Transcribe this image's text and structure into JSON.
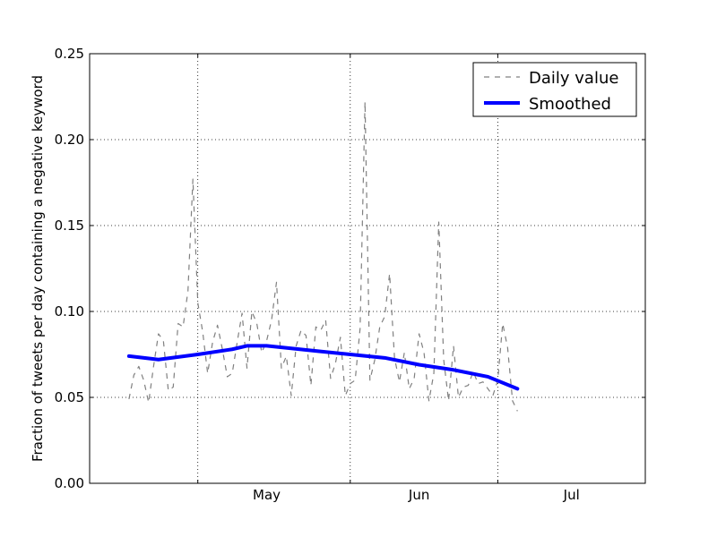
{
  "chart_data": {
    "type": "line",
    "ylabel": "Fraction of tweets per day containing a negative keyword",
    "xlabel": "",
    "title": "",
    "x_domain": [
      "2011-04-09",
      "2011-07-31"
    ],
    "ylim": [
      0,
      0.25
    ],
    "y_ticks": [
      0.0,
      0.05,
      0.1,
      0.15,
      0.2,
      0.25
    ],
    "y_tick_labels": [
      "0.00",
      "0.05",
      "0.10",
      "0.15",
      "0.20",
      "0.25"
    ],
    "x_grid_dates": [
      "2011-05-01",
      "2011-06-01",
      "2011-07-01"
    ],
    "x_tick_labels": [
      {
        "label": "May",
        "date": "2011-05-15"
      },
      {
        "label": "Jun",
        "date": "2011-06-15"
      },
      {
        "label": "Jul",
        "date": "2011-07-16"
      }
    ],
    "grid": true,
    "legend_position": "top-right",
    "series": [
      {
        "name": "Daily value",
        "style": "dashed",
        "color": "#808080",
        "points": [
          [
            "2011-04-17",
            0.049
          ],
          [
            "2011-04-18",
            0.063
          ],
          [
            "2011-04-19",
            0.068
          ],
          [
            "2011-04-20",
            0.06
          ],
          [
            "2011-04-21",
            0.047
          ],
          [
            "2011-04-22",
            0.068
          ],
          [
            "2011-04-23",
            0.087
          ],
          [
            "2011-04-24",
            0.083
          ],
          [
            "2011-04-25",
            0.054
          ],
          [
            "2011-04-26",
            0.056
          ],
          [
            "2011-04-27",
            0.093
          ],
          [
            "2011-04-28",
            0.091
          ],
          [
            "2011-04-29",
            0.112
          ],
          [
            "2011-04-30",
            0.177
          ],
          [
            "2011-05-01",
            0.105
          ],
          [
            "2011-05-02",
            0.088
          ],
          [
            "2011-05-03",
            0.064
          ],
          [
            "2011-05-04",
            0.082
          ],
          [
            "2011-05-05",
            0.092
          ],
          [
            "2011-05-06",
            0.078
          ],
          [
            "2011-05-07",
            0.062
          ],
          [
            "2011-05-08",
            0.064
          ],
          [
            "2011-05-09",
            0.082
          ],
          [
            "2011-05-10",
            0.099
          ],
          [
            "2011-05-11",
            0.067
          ],
          [
            "2011-05-12",
            0.1
          ],
          [
            "2011-05-13",
            0.093
          ],
          [
            "2011-05-14",
            0.076
          ],
          [
            "2011-05-15",
            0.083
          ],
          [
            "2011-05-16",
            0.095
          ],
          [
            "2011-05-17",
            0.117
          ],
          [
            "2011-05-18",
            0.067
          ],
          [
            "2011-05-19",
            0.074
          ],
          [
            "2011-05-20",
            0.051
          ],
          [
            "2011-05-21",
            0.08
          ],
          [
            "2011-05-22",
            0.089
          ],
          [
            "2011-05-23",
            0.086
          ],
          [
            "2011-05-24",
            0.057
          ],
          [
            "2011-05-25",
            0.091
          ],
          [
            "2011-05-26",
            0.089
          ],
          [
            "2011-05-27",
            0.095
          ],
          [
            "2011-05-28",
            0.061
          ],
          [
            "2011-05-29",
            0.07
          ],
          [
            "2011-05-30",
            0.085
          ],
          [
            "2011-05-31",
            0.051
          ],
          [
            "2011-06-01",
            0.058
          ],
          [
            "2011-06-02",
            0.06
          ],
          [
            "2011-06-03",
            0.09
          ],
          [
            "2011-06-04",
            0.222
          ],
          [
            "2011-06-05",
            0.06
          ],
          [
            "2011-06-06",
            0.072
          ],
          [
            "2011-06-07",
            0.091
          ],
          [
            "2011-06-08",
            0.097
          ],
          [
            "2011-06-09",
            0.122
          ],
          [
            "2011-06-10",
            0.073
          ],
          [
            "2011-06-11",
            0.059
          ],
          [
            "2011-06-12",
            0.076
          ],
          [
            "2011-06-13",
            0.055
          ],
          [
            "2011-06-14",
            0.061
          ],
          [
            "2011-06-15",
            0.087
          ],
          [
            "2011-06-16",
            0.076
          ],
          [
            "2011-06-17",
            0.048
          ],
          [
            "2011-06-18",
            0.064
          ],
          [
            "2011-06-19",
            0.152
          ],
          [
            "2011-06-20",
            0.072
          ],
          [
            "2011-06-21",
            0.048
          ],
          [
            "2011-06-22",
            0.08
          ],
          [
            "2011-06-23",
            0.05
          ],
          [
            "2011-06-24",
            0.056
          ],
          [
            "2011-06-25",
            0.057
          ],
          [
            "2011-06-26",
            0.065
          ],
          [
            "2011-06-27",
            0.058
          ],
          [
            "2011-06-28",
            0.059
          ],
          [
            "2011-06-29",
            0.055
          ],
          [
            "2011-06-30",
            0.051
          ],
          [
            "2011-07-01",
            0.06
          ],
          [
            "2011-07-02",
            0.093
          ],
          [
            "2011-07-03",
            0.079
          ],
          [
            "2011-07-04",
            0.048
          ],
          [
            "2011-07-05",
            0.042
          ]
        ]
      },
      {
        "name": "Smoothed",
        "style": "solid",
        "color": "#0000ff",
        "points": [
          [
            "2011-04-17",
            0.074
          ],
          [
            "2011-04-23",
            0.072
          ],
          [
            "2011-05-01",
            0.075
          ],
          [
            "2011-05-08",
            0.078
          ],
          [
            "2011-05-11",
            0.08
          ],
          [
            "2011-05-15",
            0.08
          ],
          [
            "2011-05-25",
            0.077
          ],
          [
            "2011-06-01",
            0.075
          ],
          [
            "2011-06-08",
            0.073
          ],
          [
            "2011-06-15",
            0.069
          ],
          [
            "2011-06-22",
            0.066
          ],
          [
            "2011-06-29",
            0.062
          ],
          [
            "2011-07-05",
            0.055
          ]
        ]
      }
    ]
  }
}
